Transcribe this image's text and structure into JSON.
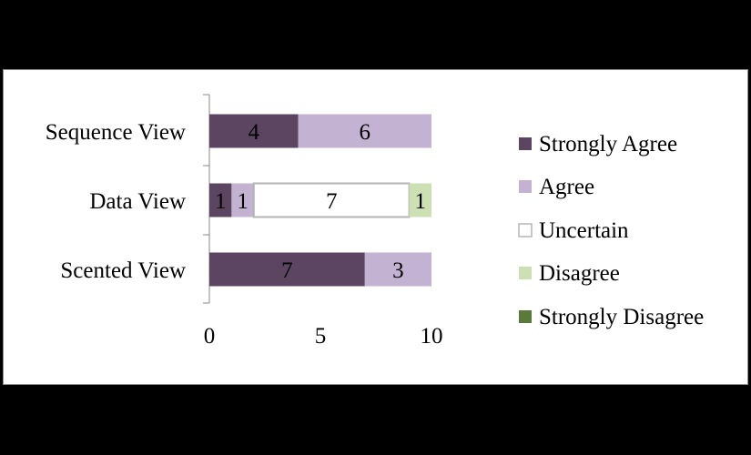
{
  "chart_data": {
    "type": "bar",
    "orientation": "horizontal",
    "stacked": true,
    "categories": [
      "Sequence View",
      "Data View",
      "Scented View"
    ],
    "series": [
      {
        "name": "Strongly Agree",
        "color": "#5b4560",
        "values": [
          4,
          1,
          7
        ]
      },
      {
        "name": "Agree",
        "color": "#c4b2d2",
        "values": [
          6,
          1,
          3
        ]
      },
      {
        "name": "Uncertain",
        "color": "#ffffff",
        "values": [
          0,
          7,
          0
        ]
      },
      {
        "name": "Disagree",
        "color": "#cde0b4",
        "values": [
          0,
          1,
          0
        ]
      },
      {
        "name": "Strongly Disagree",
        "color": "#5a7a3c",
        "values": [
          0,
          0,
          0
        ]
      }
    ],
    "xlim": [
      0,
      10
    ],
    "xticks": [
      "0",
      "5",
      "10"
    ],
    "data_labels": true,
    "grid": false,
    "legend": "right"
  },
  "colors": {
    "uncertain_outline": "#b5b5b5",
    "axis": "#888888"
  }
}
